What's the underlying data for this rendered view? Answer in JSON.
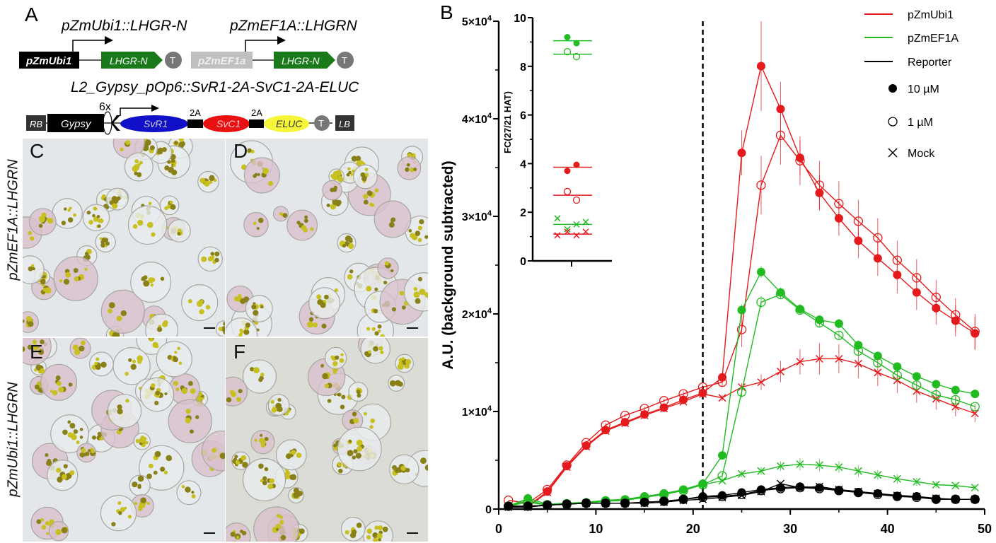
{
  "panel_labels": {
    "a": "A",
    "b": "B",
    "c": "C",
    "d": "D",
    "e": "E",
    "f": "F"
  },
  "construct": {
    "title1": "pZmUbi1::LHGR-N",
    "title2": "pZmEF1A::LHGRN",
    "title3": "L2_Gypsy_pOp6::SvR1-2A-SvC1-2A-ELUC",
    "promoter1": "pZmUbi1",
    "promoter2": "pZmEF1a",
    "gene": "LHGR-N",
    "terminator": "T",
    "rb": "RB",
    "gypsy": "Gypsy",
    "sixx": "6x",
    "svr1": "SvR1",
    "twoa": "2A",
    "svc1": "SvC1",
    "eluc": "ELUC",
    "lb": "LB",
    "colors": {
      "gene": "#1a7a1a",
      "svr1": "#1010c8",
      "svc1": "#e81010",
      "eluc": "#f5f53a",
      "promoter2": "#c0c0c0"
    }
  },
  "micrographs": {
    "row1_label": "pZmEF1A::LHGRN",
    "row2_label": "pZmUbi1::LHGRN"
  },
  "chart_data": [
    {
      "type": "line",
      "ylabel": "A.U. (background  subtracted)",
      "xlabel": "",
      "xlim": [
        0,
        50
      ],
      "ylim": [
        0,
        50000
      ],
      "xticks": [
        "0",
        "10",
        "20",
        "30",
        "40",
        "50"
      ],
      "yticks": [
        "0",
        "1×10",
        "2×10",
        "3×10",
        "4×10",
        "5×10"
      ],
      "ytick_exponent": "4",
      "vertical_dashed_line_x": 21,
      "legend_placement": "top-right",
      "legend": [
        {
          "label": "pZmUbi1",
          "kind": "line",
          "color": "#e41a1c"
        },
        {
          "label": "pZmEF1A",
          "kind": "line",
          "color": "#22bb22"
        },
        {
          "label": "Reporter",
          "kind": "line",
          "color": "#000000"
        },
        {
          "label": "10 µM",
          "kind": "filled-circle",
          "color": "#000000"
        },
        {
          "label": "1 µM",
          "kind": "open-circle",
          "color": "#000000"
        },
        {
          "label": "Mock",
          "kind": "cross",
          "color": "#000000"
        }
      ],
      "x": [
        1,
        3,
        5,
        7,
        9,
        11,
        13,
        15,
        17,
        19,
        21,
        23,
        25,
        27,
        29,
        31,
        33,
        35,
        37,
        39,
        41,
        43,
        45,
        47,
        49
      ],
      "series": [
        {
          "construct": "pZmUbi1",
          "treatment": "10 µM",
          "color": "#e41a1c",
          "marker": "filled",
          "values": [
            300,
            300,
            1800,
            4400,
            6500,
            8100,
            8900,
            9700,
            10400,
            11200,
            11900,
            13500,
            36500,
            45400,
            41000,
            36000,
            32400,
            29800,
            27500,
            25700,
            24000,
            22200,
            20600,
            19300,
            18000
          ],
          "errors": [
            0,
            0,
            100,
            200,
            200,
            200,
            200,
            200,
            200,
            300,
            300,
            400,
            2300,
            4600,
            2800,
            1800,
            1800,
            1800,
            1800,
            1800,
            1900,
            1800,
            1700,
            1600,
            1700
          ]
        },
        {
          "construct": "pZmUbi1",
          "treatment": "1 µM",
          "color": "#e41a1c",
          "marker": "open",
          "values": [
            900,
            600,
            2000,
            4500,
            6800,
            8600,
            9600,
            10300,
            11100,
            11800,
            12500,
            13000,
            18400,
            33200,
            38300,
            35700,
            33200,
            31300,
            29500,
            27800,
            25500,
            23700,
            21700,
            19900,
            18200
          ],
          "errors": [
            0,
            0,
            100,
            200,
            200,
            200,
            200,
            200,
            200,
            300,
            300,
            400,
            1800,
            3000,
            3000,
            2500,
            2500,
            2300,
            2200,
            2000,
            2000,
            1900,
            1800,
            1700,
            1800
          ]
        },
        {
          "construct": "pZmUbi1",
          "treatment": "Mock",
          "color": "#e41a1c",
          "marker": "cross",
          "values": [
            300,
            200,
            1700,
            4300,
            6400,
            8000,
            8800,
            9600,
            10300,
            11000,
            11800,
            11400,
            12500,
            13000,
            14100,
            15100,
            15400,
            15400,
            14900,
            14000,
            13200,
            12100,
            11300,
            10500,
            9800
          ],
          "errors": [
            0,
            0,
            100,
            200,
            200,
            200,
            200,
            200,
            200,
            200,
            300,
            300,
            400,
            800,
            1100,
            1300,
            1600,
            1500,
            1500,
            1400,
            1300,
            1200,
            1100,
            1000,
            900
          ]
        },
        {
          "construct": "pZmEF1A",
          "treatment": "10 µM",
          "color": "#22bb22",
          "marker": "filled",
          "values": [
            300,
            1100,
            500,
            600,
            700,
            900,
            1000,
            1300,
            1600,
            2000,
            2600,
            5500,
            20400,
            24300,
            22200,
            20500,
            19400,
            19000,
            16800,
            15700,
            14600,
            13600,
            12800,
            12200,
            11800
          ],
          "errors": [
            0,
            500,
            0,
            0,
            0,
            100,
            100,
            100,
            100,
            100,
            200,
            400,
            600,
            600,
            500,
            500,
            500,
            500,
            500,
            400,
            400,
            400,
            400,
            400,
            300
          ]
        },
        {
          "construct": "pZmEF1A",
          "treatment": "1 µM",
          "color": "#22bb22",
          "marker": "open",
          "values": [
            300,
            700,
            400,
            500,
            600,
            800,
            900,
            1200,
            1500,
            1900,
            2500,
            3400,
            12000,
            21200,
            22000,
            20400,
            19100,
            17800,
            16200,
            15000,
            13700,
            12700,
            11700,
            11200,
            10500
          ],
          "errors": [
            0,
            300,
            0,
            0,
            0,
            100,
            100,
            100,
            100,
            100,
            200,
            300,
            600,
            600,
            500,
            500,
            500,
            500,
            500,
            400,
            400,
            400,
            400,
            400,
            300
          ]
        },
        {
          "construct": "pZmEF1A",
          "treatment": "Mock",
          "color": "#22bb22",
          "marker": "cross",
          "values": [
            300,
            900,
            400,
            500,
            600,
            800,
            900,
            1200,
            1500,
            1900,
            2500,
            2900,
            3600,
            3900,
            4400,
            4600,
            4500,
            4300,
            3900,
            3500,
            3100,
            2800,
            2500,
            2400,
            2200
          ],
          "errors": [
            0,
            400,
            0,
            0,
            0,
            100,
            100,
            100,
            100,
            100,
            200,
            200,
            300,
            400,
            500,
            600,
            600,
            600,
            600,
            500,
            500,
            400,
            300,
            300,
            300
          ]
        },
        {
          "construct": "Reporter",
          "treatment": "10 µM",
          "color": "#000000",
          "marker": "filled",
          "values": [
            300,
            300,
            400,
            500,
            600,
            600,
            600,
            700,
            800,
            1000,
            1300,
            1400,
            1700,
            2000,
            2200,
            2300,
            2200,
            1900,
            1700,
            1600,
            1300,
            1300,
            1000,
            1000,
            1000
          ],
          "errors": [
            0,
            0,
            0,
            0,
            0,
            0,
            0,
            0,
            100,
            100,
            100,
            100,
            100,
            200,
            200,
            200,
            200,
            200,
            200,
            200,
            100,
            100,
            100,
            100,
            100
          ]
        },
        {
          "construct": "Reporter",
          "treatment": "1 µM",
          "color": "#000000",
          "marker": "open",
          "values": [
            300,
            300,
            400,
            500,
            600,
            600,
            600,
            700,
            800,
            1000,
            1200,
            1300,
            1500,
            1900,
            2100,
            2200,
            2100,
            1900,
            1700,
            1500,
            1300,
            1200,
            1000,
            1000,
            1000
          ],
          "errors": [
            0,
            0,
            0,
            0,
            0,
            0,
            0,
            0,
            100,
            100,
            100,
            100,
            100,
            200,
            200,
            200,
            200,
            200,
            200,
            200,
            100,
            100,
            100,
            100,
            100
          ]
        },
        {
          "construct": "Reporter",
          "treatment": "Mock",
          "color": "#000000",
          "marker": "cross",
          "values": [
            200,
            200,
            400,
            500,
            600,
            600,
            600,
            600,
            700,
            900,
            1000,
            1200,
            1400,
            1800,
            2600,
            2200,
            2300,
            2000,
            1800,
            1600,
            1400,
            1300,
            1100,
            1000,
            1000
          ],
          "errors": [
            0,
            0,
            0,
            0,
            0,
            0,
            0,
            0,
            100,
            100,
            100,
            100,
            100,
            200,
            200,
            200,
            200,
            200,
            200,
            200,
            100,
            100,
            100,
            100,
            100
          ]
        }
      ]
    },
    {
      "type": "scatter",
      "inset": true,
      "ylabel": "FC(27/21 HAT)",
      "ylim": [
        0,
        10
      ],
      "yticks": [
        "0",
        "2",
        "4",
        "6",
        "8",
        "10"
      ],
      "groups": [
        {
          "construct": "pZmEF1A",
          "treatment": "10 µM",
          "marker": "filled",
          "color": "#22bb22",
          "points": [
            9.2,
            8.95
          ],
          "mean": 9.05
        },
        {
          "construct": "pZmEF1A",
          "treatment": "1 µM",
          "marker": "open",
          "color": "#22bb22",
          "points": [
            8.6,
            8.4
          ],
          "mean": 8.5
        },
        {
          "construct": "pZmUbi1",
          "treatment": "10 µM",
          "marker": "filled",
          "color": "#e41a1c",
          "points": [
            3.7,
            3.95
          ],
          "mean": 3.85
        },
        {
          "construct": "pZmUbi1",
          "treatment": "1 µM",
          "marker": "open",
          "color": "#e41a1c",
          "points": [
            2.85,
            2.5
          ],
          "mean": 2.7
        },
        {
          "construct": "pZmEF1A",
          "treatment": "Mock",
          "marker": "cross",
          "color": "#22bb22",
          "points": [
            1.75,
            1.3,
            1.5,
            1.6
          ],
          "mean": 1.5
        },
        {
          "construct": "pZmUbi1",
          "treatment": "Mock",
          "marker": "cross",
          "color": "#e41a1c",
          "points": [
            1.05,
            1.2,
            1.05,
            1.2
          ],
          "mean": 1.1
        }
      ]
    }
  ]
}
